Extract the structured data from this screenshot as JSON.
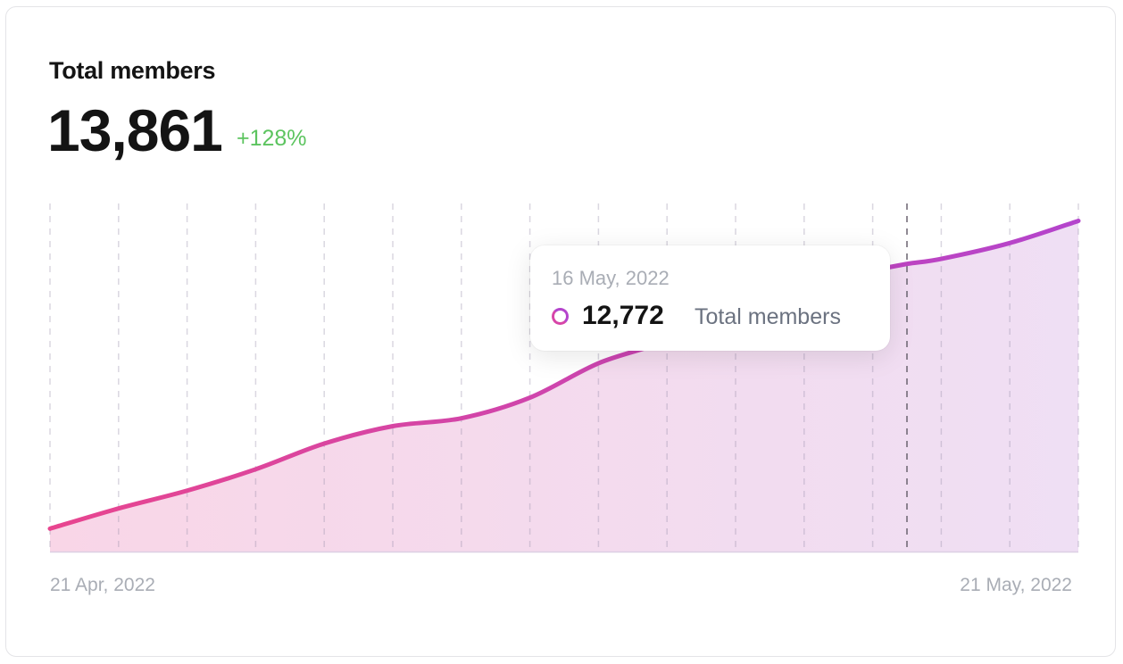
{
  "card": {
    "title": "Total members",
    "total": "13,861",
    "change": "+128%",
    "change_color": "#5cc45f"
  },
  "tooltip": {
    "date": "16 May, 2022",
    "value": "12,772",
    "label": "Total members"
  },
  "chart_data": {
    "type": "area",
    "title": "Total members",
    "xlabel": "",
    "ylabel": "",
    "x_tick_labels": [
      "21 Apr, 2022",
      "21 May, 2022"
    ],
    "x": [
      "2022-04-21",
      "2022-04-23",
      "2022-04-25",
      "2022-04-27",
      "2022-04-29",
      "2022-05-01",
      "2022-05-03",
      "2022-05-05",
      "2022-05-07",
      "2022-05-09",
      "2022-05-11",
      "2022-05-13",
      "2022-05-15",
      "2022-05-16",
      "2022-05-17",
      "2022-05-19",
      "2022-05-21"
    ],
    "series": [
      {
        "name": "Total members",
        "values": [
          6079,
          6590,
          7040,
          7580,
          8230,
          8670,
          8870,
          9390,
          10260,
          10840,
          11740,
          12180,
          12600,
          12772,
          12900,
          13300,
          13861
        ]
      }
    ],
    "ylim": [
      5500,
      14300
    ],
    "grid": "vertical dashed",
    "highlighted_x": "2022-05-16",
    "line_colors": [
      "#e8458f",
      "#b444cc"
    ],
    "legend": "none"
  }
}
